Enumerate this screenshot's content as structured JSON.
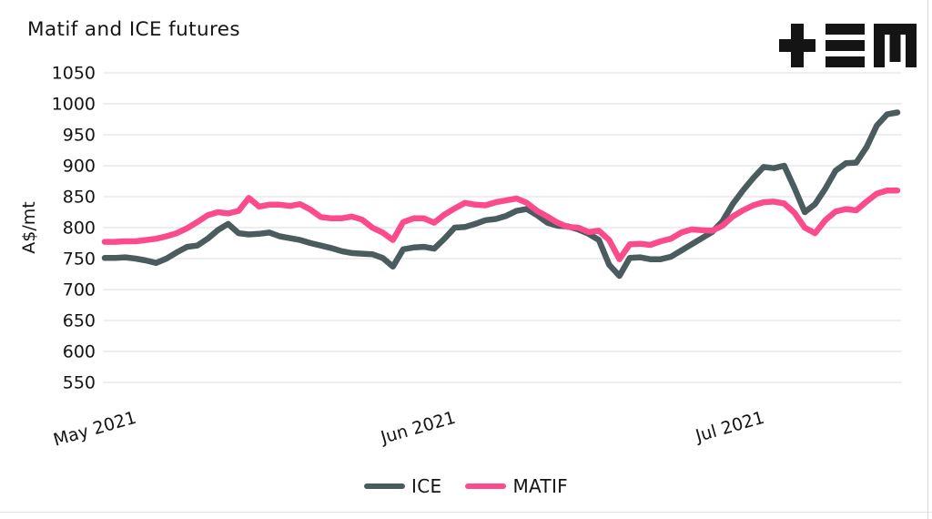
{
  "title": "Matif and ICE futures",
  "logo": {
    "alt": "TEM logo",
    "glyphs": "plus, triple-bar, M"
  },
  "y_axis": {
    "label": "A$/mt"
  },
  "legend": {
    "items": [
      {
        "label": "ICE",
        "color": "#4b5c5e"
      },
      {
        "label": "MATIF",
        "color": "#fb4b8c"
      }
    ]
  },
  "chart_data": {
    "type": "line",
    "title": "Matif and ICE futures",
    "xlabel": "",
    "ylabel": "A$/mt",
    "ylim": [
      550,
      1050
    ],
    "y_ticks": [
      550,
      600,
      650,
      700,
      750,
      800,
      850,
      900,
      950,
      1000,
      1050
    ],
    "grid": "horizontal-only",
    "legend_position": "bottom-center",
    "x_unit": "days",
    "x_start_date": "2021-04-28",
    "x_end_date": "2021-07-14",
    "x_ticks": [
      {
        "label": "May 2021",
        "day_index": 3
      },
      {
        "label": "Jun 2021",
        "day_index": 34
      },
      {
        "label": "Jul 2021",
        "day_index": 64
      }
    ],
    "series": [
      {
        "name": "ICE",
        "color": "#4b5c5e",
        "values": [
          751,
          751,
          752,
          750,
          747,
          743,
          750,
          760,
          769,
          771,
          782,
          796,
          806,
          791,
          789,
          790,
          792,
          786,
          783,
          780,
          775,
          771,
          767,
          762,
          759,
          758,
          757,
          751,
          737,
          765,
          768,
          769,
          766,
          782,
          800,
          801,
          806,
          812,
          814,
          819,
          827,
          830,
          820,
          808,
          803,
          802,
          797,
          790,
          780,
          740,
          722,
          751,
          752,
          749,
          749,
          753,
          763,
          773,
          783,
          793,
          810,
          838,
          860,
          880,
          898,
          896,
          900,
          864,
          825,
          838,
          863,
          892,
          904,
          905,
          930,
          965,
          983,
          986
        ]
      },
      {
        "name": "MATIF",
        "color": "#fb4b8c",
        "values": [
          777,
          777,
          778,
          778,
          780,
          782,
          786,
          791,
          799,
          809,
          820,
          825,
          823,
          827,
          848,
          834,
          837,
          837,
          835,
          838,
          829,
          817,
          815,
          815,
          818,
          813,
          800,
          792,
          780,
          809,
          815,
          815,
          808,
          821,
          831,
          840,
          837,
          836,
          841,
          844,
          847,
          840,
          827,
          818,
          808,
          801,
          800,
          793,
          795,
          780,
          749,
          773,
          774,
          772,
          778,
          782,
          792,
          797,
          796,
          795,
          803,
          818,
          828,
          836,
          841,
          842,
          839,
          824,
          800,
          791,
          812,
          826,
          830,
          828,
          842,
          855,
          860,
          860
        ]
      }
    ]
  }
}
